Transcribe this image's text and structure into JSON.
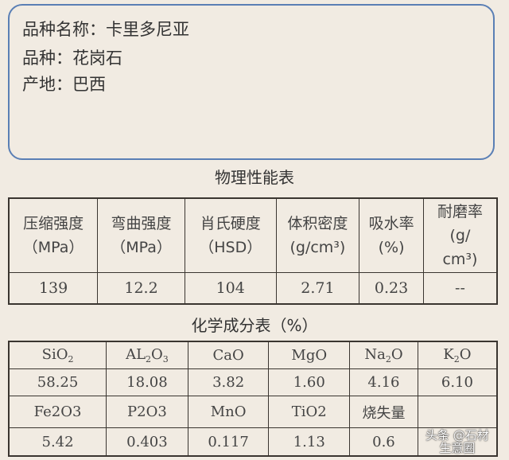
{
  "info": {
    "name": "品种名称：卡里多尼亚",
    "type": "品种：花岗石",
    "origin": "产地：巴西"
  },
  "physical": {
    "title": "物理性能表",
    "headers": [
      [
        "压缩强度",
        "（MPa）"
      ],
      [
        "弯曲强度",
        "（MPa）"
      ],
      [
        "肖氏硬度",
        "（HSD）"
      ],
      [
        "体积密度",
        "(g/cm³)"
      ],
      [
        "吸水率",
        "(%)"
      ],
      [
        "耐磨率",
        "(g/",
        "cm³)"
      ]
    ],
    "values": [
      "139",
      "12.2",
      "104",
      "2.71",
      "0.23",
      "--"
    ]
  },
  "chemical": {
    "title": "化学成分表（%）",
    "row1_headers": [
      [
        "Si",
        "O",
        "2"
      ],
      [
        "AL",
        "2",
        "O",
        "3"
      ],
      [
        "CaO"
      ],
      [
        "MgO"
      ],
      [
        "Na",
        "2",
        "O"
      ],
      [
        "K",
        "2",
        "O"
      ]
    ],
    "row1_values": [
      "58.25",
      "18.08",
      "3.82",
      "1.60",
      "4.16",
      "6.10"
    ],
    "row2_headers": [
      "Fe2O3",
      "P2O3",
      "MnO",
      "TiO2",
      "烧失量",
      ""
    ],
    "row2_values": [
      "5.42",
      "0.403",
      "0.117",
      "1.13",
      "0.6",
      ""
    ]
  },
  "watermark": "头条 @石材生意圈"
}
